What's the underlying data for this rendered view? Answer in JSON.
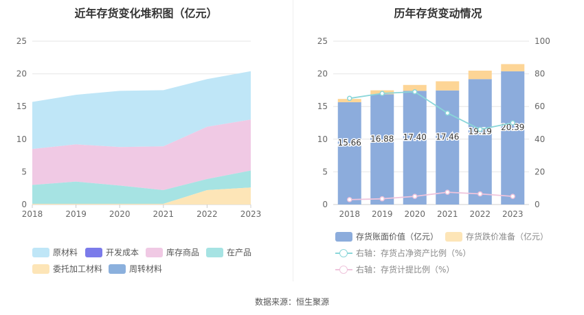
{
  "source": "数据来源：恒生聚源",
  "chart_data": [
    {
      "type": "area",
      "title": "近年存货变化堆积图（亿元）",
      "x": [
        "2018",
        "2019",
        "2020",
        "2021",
        "2022",
        "2023"
      ],
      "stacked": true,
      "ylim": [
        0,
        25
      ],
      "yticks": [
        0,
        5,
        10,
        15,
        20,
        25
      ],
      "grid": true,
      "legend_position": "bottom",
      "series": [
        {
          "name": "原材料",
          "color": "#bfe6f7",
          "values": [
            7.2,
            7.6,
            8.6,
            8.6,
            7.3,
            7.4
          ]
        },
        {
          "name": "开发成本",
          "color": "#7b7bea",
          "values": [
            0,
            0,
            0,
            0,
            0,
            0
          ]
        },
        {
          "name": "库存商品",
          "color": "#f0c9e4",
          "values": [
            5.5,
            5.7,
            5.9,
            6.7,
            8.0,
            7.8
          ]
        },
        {
          "name": "在产品",
          "color": "#a6e3e3",
          "values": [
            2.9,
            3.4,
            2.8,
            2.1,
            1.7,
            2.6
          ]
        },
        {
          "name": "委托加工材料",
          "color": "#fde5b7",
          "values": [
            0.1,
            0.1,
            0.1,
            0.1,
            2.2,
            2.6
          ]
        },
        {
          "name": "周转材料",
          "color": "#8bb0dd",
          "values": [
            0,
            0,
            0,
            0,
            0,
            0
          ]
        }
      ]
    },
    {
      "type": "bar",
      "title": "历年存货变动情况",
      "categories": [
        "2018",
        "2019",
        "2020",
        "2021",
        "2022",
        "2023"
      ],
      "ylim": [
        0,
        25
      ],
      "yticks": [
        0,
        5,
        10,
        15,
        20,
        25
      ],
      "y2lim": [
        0,
        100
      ],
      "y2ticks": [
        0,
        20,
        40,
        60,
        80,
        100
      ],
      "grid": true,
      "legend_position": "bottom",
      "series": [
        {
          "name": "存货账面价值（亿元）",
          "kind": "bar",
          "color": "#8cacdc",
          "values": [
            15.66,
            16.88,
            17.4,
            17.46,
            19.19,
            20.39
          ],
          "labels": [
            "15.66",
            "16.88",
            "17.40",
            "17.46",
            "19.19",
            "20.39"
          ]
        },
        {
          "name": "存货跌价准备（亿元）",
          "kind": "bar",
          "color": "#fdd596",
          "values": [
            0.5,
            0.6,
            0.9,
            1.4,
            1.3,
            1.1
          ]
        },
        {
          "name": "右轴：存货占净资产比例（%）",
          "kind": "line",
          "axis": "right",
          "color": "#8ad6d9",
          "values": [
            65,
            68,
            69,
            56,
            46,
            50
          ]
        },
        {
          "name": "右轴：存货计提比例（%）",
          "kind": "line",
          "axis": "right",
          "color": "#efc4dc",
          "values": [
            3,
            3.5,
            5,
            7.5,
            6.5,
            5
          ]
        }
      ]
    }
  ]
}
